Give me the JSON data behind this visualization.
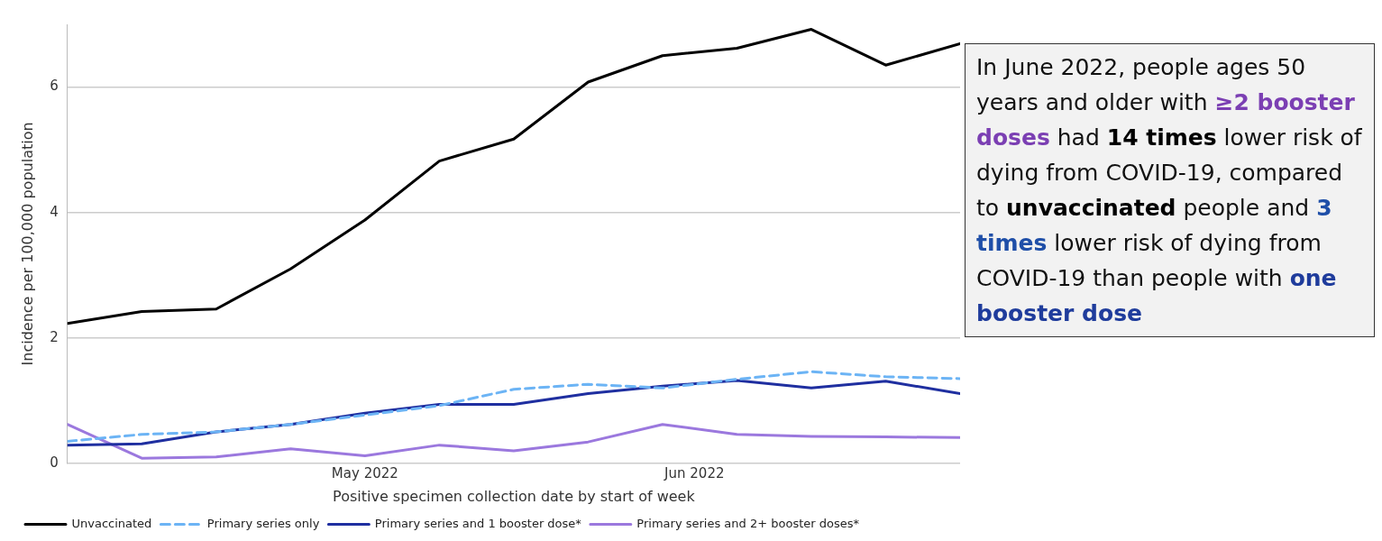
{
  "chart_data": {
    "type": "line",
    "xlabel": "Positive specimen collection date by start of week",
    "ylabel": "Incidence per 100,000 population",
    "x": [
      "2022-04-03",
      "2022-04-10",
      "2022-04-17",
      "2022-04-24",
      "2022-05-01",
      "2022-05-08",
      "2022-05-15",
      "2022-05-22",
      "2022-05-29",
      "2022-06-05",
      "2022-06-12",
      "2022-06-19",
      "2022-06-26"
    ],
    "series": [
      {
        "name": "Unvaccinated",
        "color": "#000000",
        "values": [
          2.23,
          2.42,
          2.46,
          3.1,
          3.88,
          4.82,
          5.17,
          6.08,
          6.5,
          6.62,
          6.92,
          6.35,
          6.69
        ]
      },
      {
        "name": "Primary series only",
        "color": "#6cb4f5",
        "line_style": "dashed",
        "values": [
          0.35,
          0.46,
          0.5,
          0.62,
          0.77,
          0.92,
          1.18,
          1.26,
          1.2,
          1.34,
          1.46,
          1.38,
          1.35
        ]
      },
      {
        "name": "Primary series and 1 booster dose*",
        "color": "#1f2fa0",
        "values": [
          0.29,
          0.31,
          0.5,
          0.62,
          0.8,
          0.94,
          0.94,
          1.11,
          1.23,
          1.32,
          1.2,
          1.31,
          1.11
        ]
      },
      {
        "name": "Primary series and 2+ booster doses*",
        "color": "#9b78de",
        "values": [
          0.62,
          0.08,
          0.1,
          0.23,
          0.12,
          0.29,
          0.2,
          0.34,
          0.62,
          0.46,
          0.43,
          0.42,
          0.41
        ]
      }
    ],
    "xlim": [
      "2022-04-03",
      "2022-06-26"
    ],
    "xticks": [
      {
        "value": "2022-05-01",
        "label": "May 2022"
      },
      {
        "value": "2022-06-01",
        "label": "Jun 2022"
      }
    ],
    "ylim": [
      0,
      7
    ],
    "yticks": [
      0,
      2,
      4,
      6
    ],
    "grid": "y",
    "legend": "bottom left",
    "marker": "none",
    "line_style": "solid",
    "annotations": [
      "In June 2022, people ages 50 years and older with ",
      "≥2 booster doses",
      " had ",
      "14 times",
      " lower risk of dying from COVID-19, compared to ",
      "unvaccinated",
      " people and ",
      "3 times",
      " lower risk of dying from COVID-19 than people with ",
      "one booster dose"
    ]
  }
}
